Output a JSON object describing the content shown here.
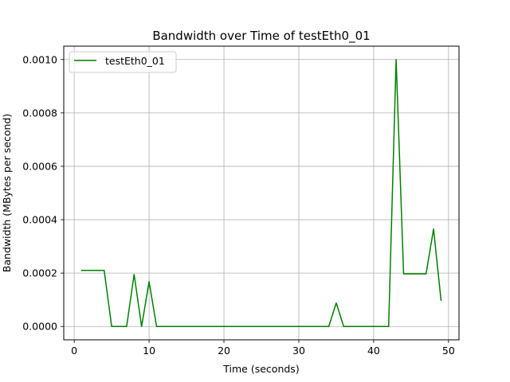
{
  "chart_data": {
    "type": "line",
    "title": "Bandwidth over Time of testEth0_01",
    "xlabel": "Time (seconds)",
    "ylabel": "Bandwidth (MBytes per second)",
    "xlim": [
      -1.4,
      51.4
    ],
    "ylim": [
      -5e-05,
      0.00105
    ],
    "xticks": [
      0,
      10,
      20,
      30,
      40,
      50
    ],
    "xtick_labels": [
      "0",
      "10",
      "20",
      "30",
      "40",
      "50"
    ],
    "yticks": [
      0.0,
      0.0002,
      0.0004,
      0.0006,
      0.0008,
      0.001
    ],
    "ytick_labels": [
      "0.0000",
      "0.0002",
      "0.0004",
      "0.0006",
      "0.0008",
      "0.0010"
    ],
    "grid": true,
    "legend_position": "top-left",
    "series": [
      {
        "name": "testEth0_01",
        "color": "#008000",
        "x": [
          1,
          2,
          3,
          4,
          5,
          6,
          7,
          8,
          9,
          10,
          11,
          12,
          13,
          14,
          15,
          16,
          17,
          18,
          19,
          20,
          21,
          22,
          23,
          24,
          25,
          26,
          27,
          28,
          29,
          30,
          31,
          32,
          33,
          34,
          35,
          36,
          37,
          38,
          39,
          40,
          41,
          42,
          43,
          44,
          45,
          46,
          47,
          48,
          49
        ],
        "y": [
          0.00021,
          0.00021,
          0.00021,
          0.00021,
          0,
          0,
          0,
          0.000195,
          0,
          0.000168,
          0,
          0,
          0,
          0,
          0,
          0,
          0,
          0,
          0,
          0,
          0,
          0,
          0,
          0,
          0,
          0,
          0,
          0,
          0,
          0,
          0,
          0,
          0,
          0,
          8.8e-05,
          0,
          0,
          0,
          0,
          0,
          0,
          0,
          0.001,
          0.000197,
          0.000197,
          0.000197,
          0.000197,
          0.000365,
          9.8e-05
        ]
      }
    ]
  }
}
